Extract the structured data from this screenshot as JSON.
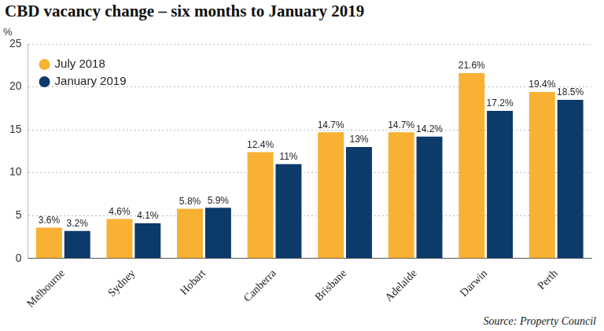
{
  "chart_data": {
    "type": "bar",
    "title": "CBD vacancy change – six months to January 2019",
    "y_label": "%",
    "source": "Source: Property Council",
    "categories": [
      "Melbourne",
      "Sydney",
      "Hobart",
      "Canberra",
      "Brisbane",
      "Adelaide",
      "Darwin",
      "Perth"
    ],
    "series": [
      {
        "name": "July 2018",
        "color": "#f8b133",
        "values": [
          3.6,
          4.6,
          5.8,
          12.4,
          14.7,
          14.7,
          21.6,
          19.4
        ],
        "value_labels": [
          "3.6%",
          "4.6%",
          "5.8%",
          "12.4%",
          "14.7%",
          "14.7%",
          "21.6%",
          "19.4%"
        ]
      },
      {
        "name": "January 2019",
        "color": "#0c3a6a",
        "values": [
          3.2,
          4.1,
          5.9,
          11,
          13,
          14.2,
          17.2,
          18.5
        ],
        "value_labels": [
          "3.2%",
          "4.1%",
          "5.9%",
          "11%",
          "13%",
          "14.2%",
          "17.2%",
          "18.5%"
        ]
      }
    ],
    "ylim": [
      0,
      25
    ],
    "yticks": [
      0,
      5,
      10,
      15,
      20,
      25
    ],
    "grid": true,
    "legend": "top-left",
    "data_labels": true
  }
}
